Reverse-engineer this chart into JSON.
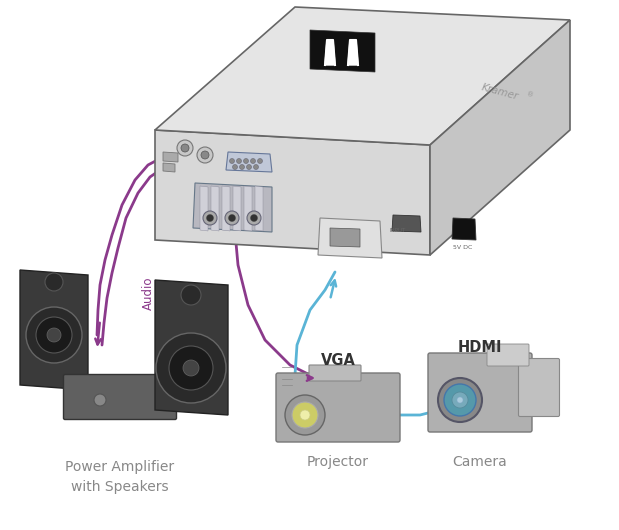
{
  "bg_color": "#ffffff",
  "device_box": {
    "front_color": "#d8d8d8",
    "top_color": "#e5e5e5",
    "side_color": "#c5c5c5",
    "edge_color": "#666666"
  },
  "cable_colors": {
    "audio_vga": "#8b3a8b",
    "hdmi": "#5ab4d6"
  },
  "labels": {
    "power_amp": "Power Amplifier\nwith Speakers",
    "projector": "Projector",
    "camera": "Camera",
    "vga": "VGA",
    "hdmi": "HDMI",
    "audio": "Audio"
  },
  "label_color": "#888888",
  "label_fontsize": 10,
  "sublabel_fontsize": 8.5,
  "connector_fontsize": 10.5
}
